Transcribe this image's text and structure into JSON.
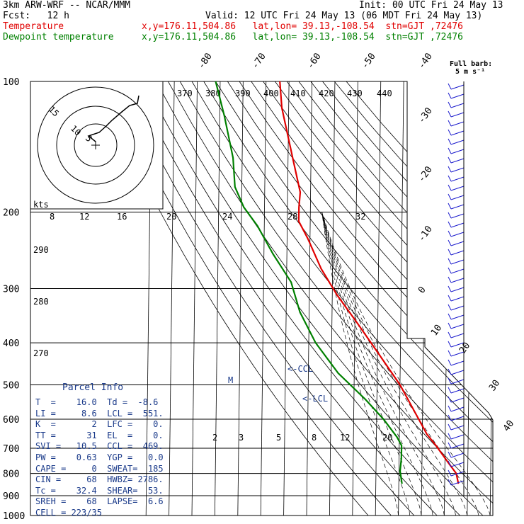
{
  "header": {
    "line1_left": "3km ARW-WRF -- NCAR/MMM",
    "line1_right": "Init: 00 UTC Fri 24 May 13",
    "line2_left": "Fcst:   12 h",
    "line2_right": "Valid: 12 UTC Fri 24 May 13 (06 MDT Fri 24 May 13)",
    "temp_label": "Temperature",
    "temp_info": "x,y=176.11,504.86   lat,lon= 39.13,-108.54  stn=GJT ,72476",
    "dew_label": "Dewpoint temperature",
    "dew_info": "x,y=176.11,504.86   lat,lon= 39.13,-108.54  stn=GJT ,72476"
  },
  "barb_legend": {
    "line1": "Full barb:",
    "line2": "5 m s⁻¹"
  },
  "colors": {
    "temperature": "#e00000",
    "dewpoint": "#008000",
    "annotation": "#1a3a8a",
    "wind": "#1a1acc"
  },
  "chart_data": {
    "type": "line",
    "diagram": "skew-T log-P",
    "pressure_levels": [
      100,
      200,
      300,
      400,
      500,
      600,
      700,
      800,
      900,
      1000
    ],
    "isotherm_labels": [
      -80,
      -70,
      -60,
      -50,
      -40,
      -30,
      -20,
      -10,
      0,
      10,
      20,
      30,
      40
    ],
    "theta_labels": [
      370,
      380,
      390,
      400,
      410,
      420,
      430,
      440
    ],
    "mixing_ratio_labels": [
      2,
      3,
      5,
      8,
      12,
      20
    ],
    "hodo_speed_labels": [
      8,
      12,
      16,
      20,
      24,
      28,
      32
    ],
    "hodo_units": "kts",
    "hodo_ring_labels": [
      "5",
      "10",
      "15"
    ],
    "thetae_labels": [
      290,
      280,
      270
    ],
    "level_markers": [
      "M",
      "<-CCL",
      "<-LCL"
    ],
    "series": [
      {
        "name": "Temperature",
        "p": [
          100,
          115,
          150,
          180,
          195,
          210,
          230,
          270,
          310,
          360,
          420,
          500,
          570,
          650,
          690,
          750,
          800,
          845
        ],
        "t": [
          -64,
          -63,
          -58,
          -54.5,
          -55,
          -55,
          -51,
          -45,
          -38,
          -29,
          -20,
          -10,
          -4,
          2,
          6,
          11,
          15,
          16
        ]
      },
      {
        "name": "Dewpoint temperature",
        "p": [
          100,
          120,
          150,
          175,
          195,
          215,
          250,
          290,
          340,
          400,
          470,
          540,
          600,
          660,
          690,
          740,
          790,
          845
        ],
        "t": [
          -92,
          -88,
          -84,
          -83,
          -79,
          -73,
          -66,
          -58,
          -54,
          -47,
          -37,
          -25,
          -17,
          -11,
          -9,
          -9,
          -9.5,
          -8.6
        ]
      }
    ],
    "parcel_info": {
      "title": "Parcel Info",
      "rows": [
        "T  =    16.0  Td =  -8.6",
        "LI =     8.6  LCL =  551.",
        "K  =       2  LFC =    0.",
        "TT =      31  EL  =    0.",
        "SVI =   10.5  CCL =  469.",
        "PW =    0.63  YGP =   0.0",
        "CAPE =     0  SWEAT=  185",
        "CIN =     68  HWBZ= 2786.",
        "Tc =    32.4  SHEAR=  53.",
        "SREH =    68  LAPSE=  6.6",
        "CELL = 223/35"
      ]
    }
  }
}
